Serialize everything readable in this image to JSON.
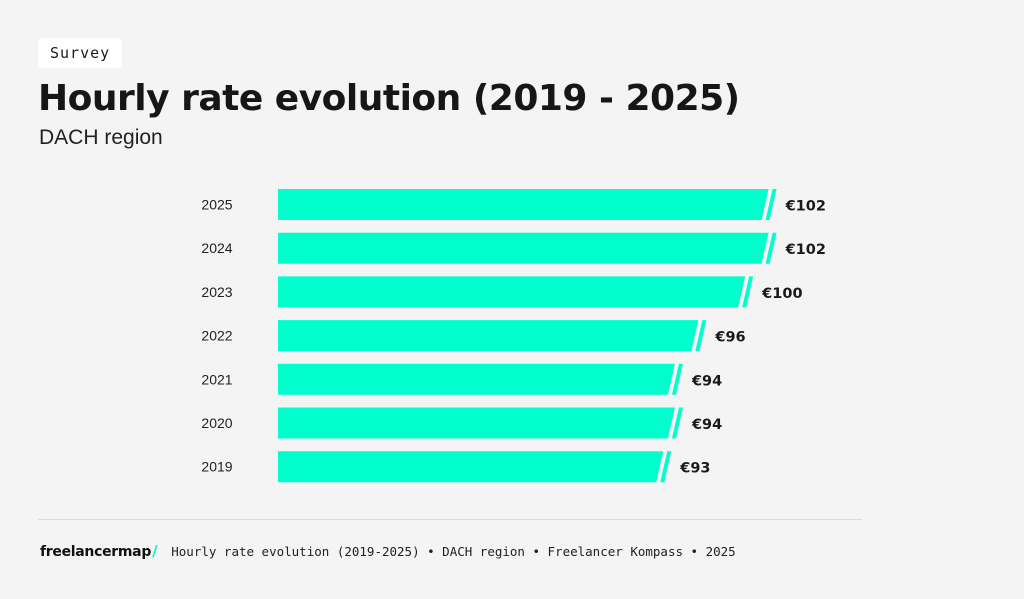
{
  "badge": "Survey",
  "title": "Hourly rate evolution (2019 - 2025)",
  "subtitle": "DACH region",
  "footer": {
    "logo": "freelancermap",
    "logo_mark": "/",
    "caption": "Hourly rate evolution (2019-2025) • DACH region • Freelancer Kompass • 2025"
  },
  "colors": {
    "bar": "#00ffcc",
    "background": "#f4f4f4",
    "text": "#1a1a1a"
  },
  "chart_data": {
    "type": "bar",
    "orientation": "horizontal",
    "categories": [
      "2025",
      "2024",
      "2023",
      "2022",
      "2021",
      "2020",
      "2019"
    ],
    "values": [
      102,
      102,
      100,
      96,
      94,
      94,
      93
    ],
    "value_labels": [
      "€102",
      "€102",
      "€100",
      "€96",
      "€94",
      "€94",
      "€93"
    ],
    "xlim": [
      60,
      104
    ],
    "axis_break": true,
    "title": "Hourly rate evolution (2019 - 2025)",
    "xlabel": "",
    "ylabel": "",
    "grid": false
  }
}
